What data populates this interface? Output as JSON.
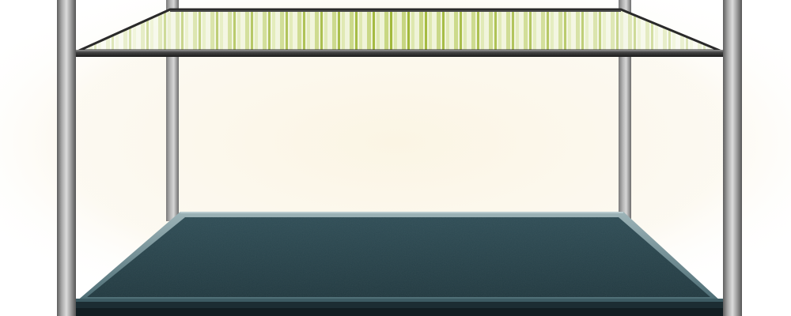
{
  "scene": {
    "colors": {
      "background": "#ffffff",
      "glow": "#fbf6e6",
      "pole_light": "#c9c9c9",
      "pole_dark": "#6f6f6f",
      "glass_shelf_tint": "#e6edc8",
      "glass_shelf_stripe": "#9bb52c",
      "glass_shelf_frame": "#2f2f2f",
      "bottom_shelf_top": "#2a4750",
      "bottom_shelf_edge": "#7d9aa0",
      "bottom_shelf_front": "#1e2f35"
    },
    "icons": {
      "top_shelf": "glass-shelf-icon",
      "bottom_shelf": "metal-shelf-icon"
    }
  }
}
